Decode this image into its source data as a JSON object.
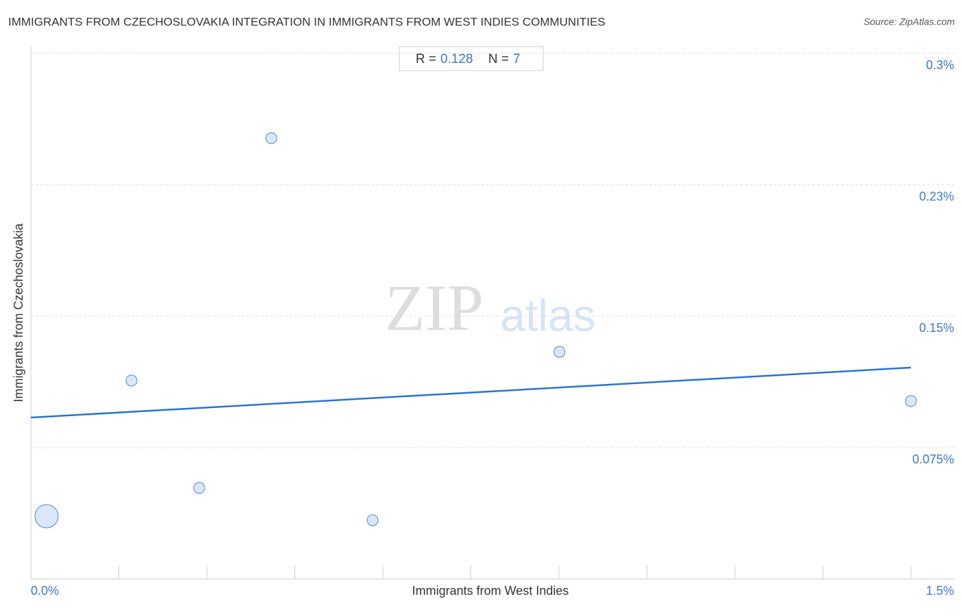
{
  "chart_data": {
    "type": "scatter",
    "title": "IMMIGRANTS FROM CZECHOSLOVAKIA INTEGRATION IN IMMIGRANTS FROM WEST INDIES COMMUNITIES",
    "source": "Source: ZipAtlas.com",
    "watermark": [
      "ZIP",
      "atlas"
    ],
    "x_label": "Immigrants from West Indies",
    "y_label": "Immigrants from Czechoslovakia",
    "stats": {
      "r_label": "R =",
      "r": 0.128,
      "n_label": "N =",
      "n": 7
    },
    "color": "#4a86d8",
    "series": [
      {
        "x": [
          0.0268,
          0.1716,
          0.287,
          0.41,
          0.5825,
          0.901,
          1.5
        ],
        "values": [
          0.0359,
          0.1133,
          0.052,
          0.2516,
          0.0336,
          0.1297,
          0.1016
        ],
        "sizes": [
          17,
          8,
          8,
          8,
          8,
          8,
          8
        ]
      }
    ],
    "trendline": {
      "x": [
        0,
        1.5
      ],
      "y": [
        0.0922,
        0.1207
      ]
    },
    "xlim": [
      0,
      1.5
    ],
    "xticks": [
      {
        "value": 0,
        "label": "0.0%"
      },
      {
        "value": 1.5,
        "label": "1.5%"
      }
    ],
    "xminor": [
      0.15,
      0.3,
      0.45,
      0.6,
      0.75,
      0.9,
      1.05,
      1.2,
      1.35
    ],
    "ylim": [
      0,
      0.3
    ],
    "yticks": [
      {
        "value": 0.075,
        "label": "0.075%"
      },
      {
        "value": 0.15,
        "label": "0.15%"
      },
      {
        "value": 0.225,
        "label": "0.23%"
      },
      {
        "value": 0.3,
        "label": "0.3%"
      }
    ],
    "grid": true
  }
}
